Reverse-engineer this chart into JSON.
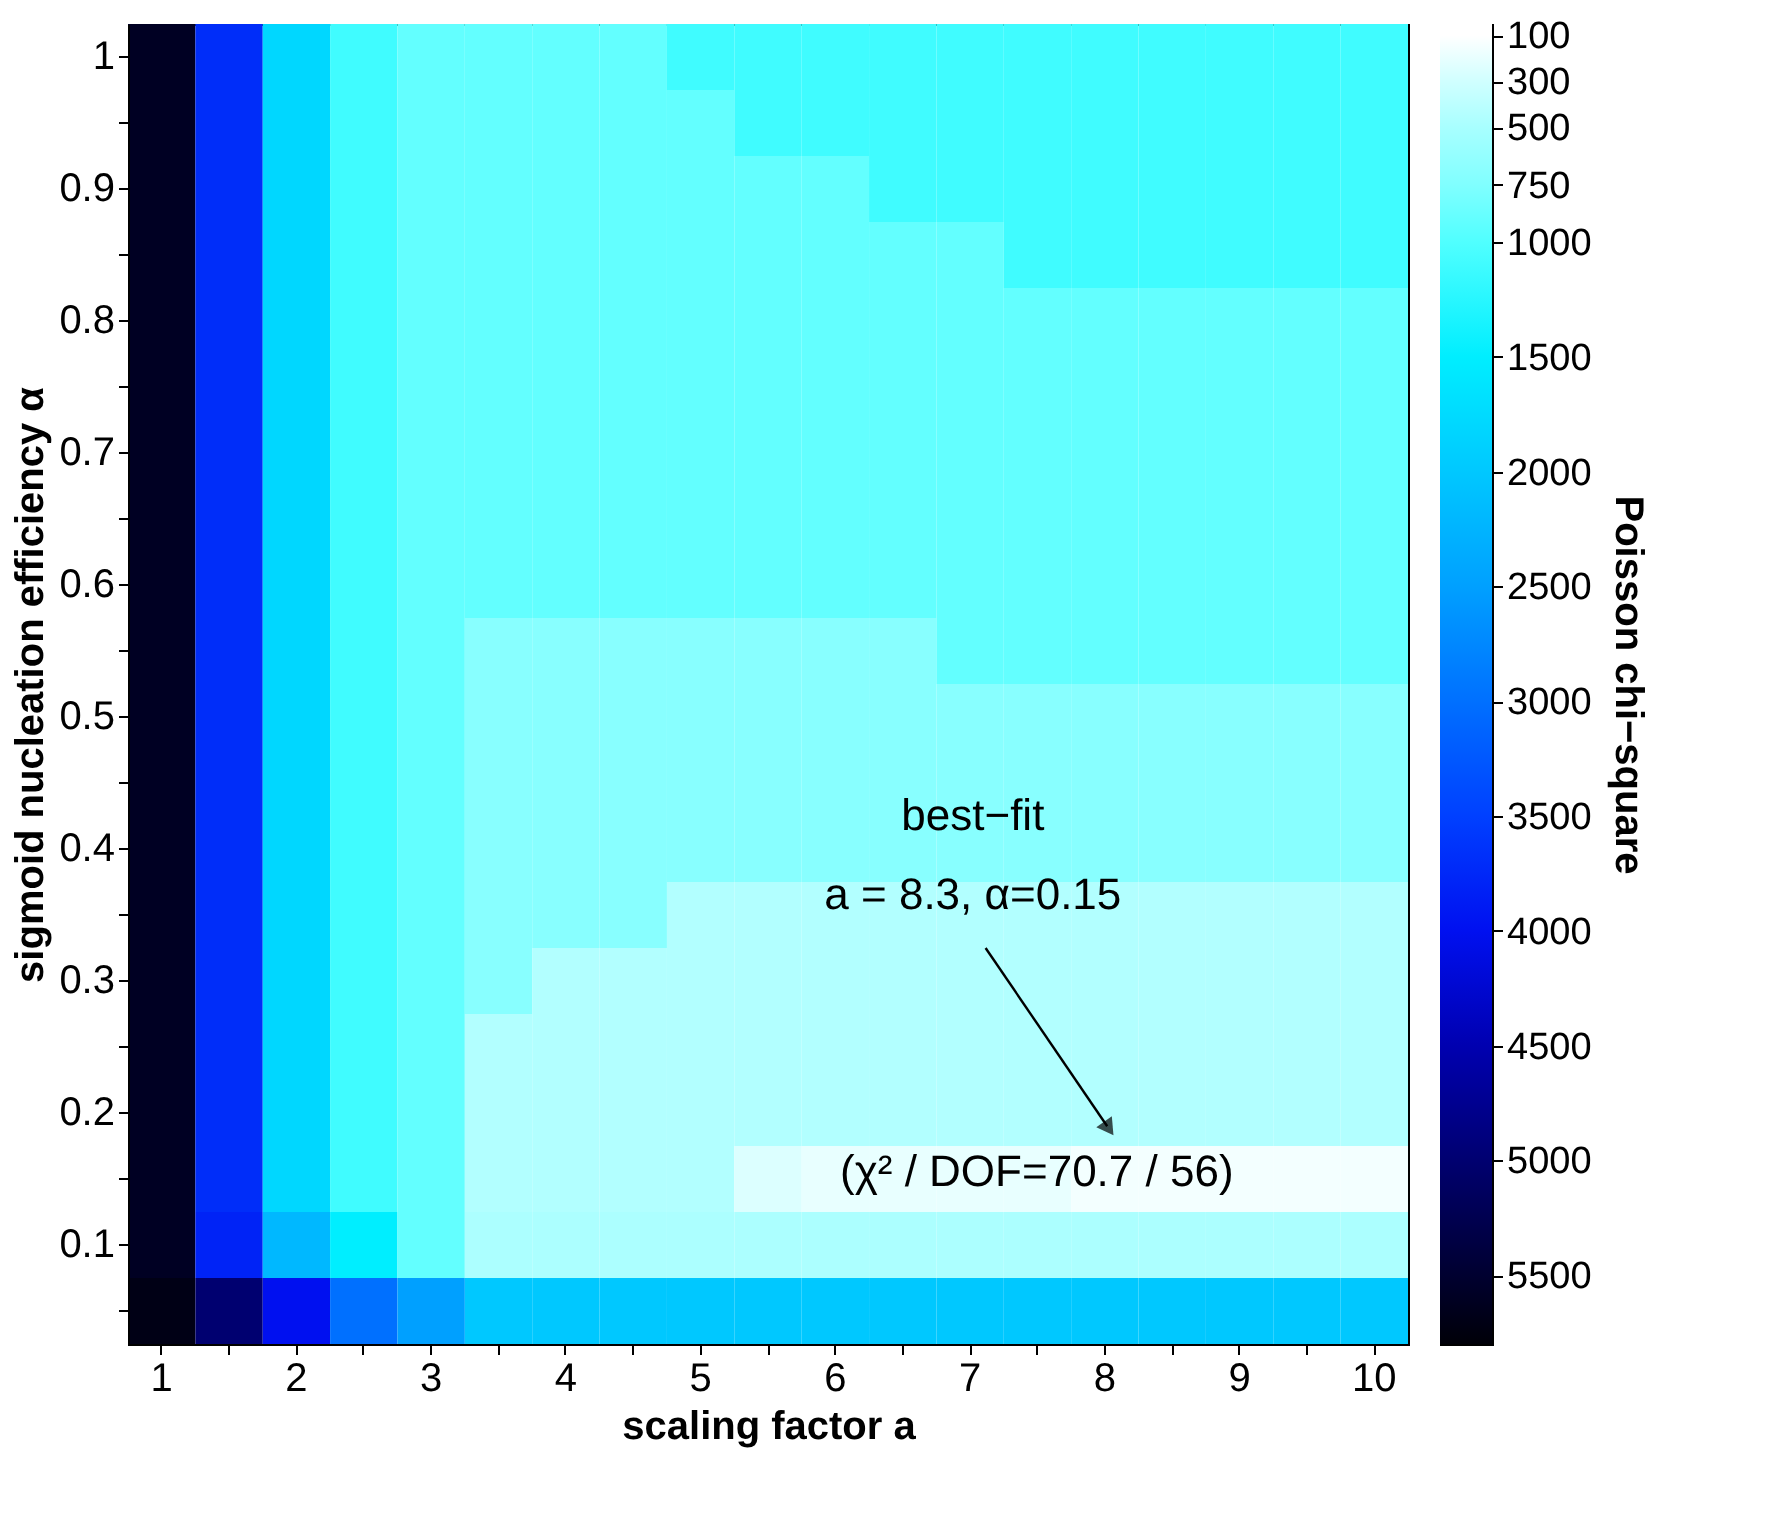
{
  "chart_data": {
    "type": "heatmap",
    "xlabel": "scaling factor  a",
    "ylabel": "sigmoid nucleation efficiency  α",
    "clabel": "Poisson chi−square",
    "categories": [
      "1",
      null,
      "2",
      null,
      "3",
      null,
      "4",
      null,
      "5",
      null,
      "6",
      null,
      "7",
      null,
      "8",
      null,
      "9",
      null,
      "10"
    ],
    "y_categories": [
      "1",
      null,
      "0.9",
      null,
      "0.8",
      null,
      "0.7",
      null,
      "0.6",
      null,
      "0.5",
      null,
      "0.4",
      null,
      "0.3",
      null,
      "0.2",
      null,
      "0.1",
      null
    ],
    "cells": [
      [
        5600,
        3700,
        1800,
        1100,
        900,
        900,
        900,
        900,
        1100,
        1100,
        1100,
        1100,
        1100,
        1100,
        1100,
        1100,
        1100,
        1100,
        1100
      ],
      [
        5600,
        3700,
        1800,
        1100,
        900,
        900,
        900,
        900,
        900,
        1100,
        1100,
        1100,
        1100,
        1100,
        1100,
        1100,
        1100,
        1100,
        1100
      ],
      [
        5600,
        3700,
        1800,
        1100,
        900,
        900,
        900,
        900,
        900,
        900,
        900,
        1100,
        1100,
        1100,
        1100,
        1100,
        1100,
        1100,
        1100
      ],
      [
        5600,
        3700,
        1800,
        1100,
        900,
        900,
        900,
        900,
        900,
        900,
        900,
        900,
        900,
        1100,
        1100,
        1100,
        1100,
        1100,
        1100
      ],
      [
        5600,
        3700,
        1800,
        1100,
        900,
        900,
        900,
        900,
        900,
        900,
        900,
        900,
        900,
        900,
        900,
        900,
        900,
        900,
        900
      ],
      [
        5600,
        3700,
        1800,
        1100,
        900,
        900,
        900,
        900,
        900,
        900,
        900,
        900,
        900,
        900,
        900,
        900,
        900,
        900,
        900
      ],
      [
        5600,
        3700,
        1800,
        1100,
        900,
        900,
        900,
        900,
        900,
        900,
        900,
        900,
        900,
        900,
        900,
        900,
        900,
        900,
        900
      ],
      [
        5600,
        3700,
        1800,
        1100,
        900,
        900,
        900,
        900,
        900,
        900,
        900,
        900,
        900,
        900,
        900,
        900,
        900,
        900,
        900
      ],
      [
        5600,
        3700,
        1800,
        1100,
        900,
        900,
        900,
        900,
        900,
        900,
        900,
        900,
        900,
        900,
        900,
        900,
        900,
        900,
        900
      ],
      [
        5600,
        3700,
        1800,
        1100,
        900,
        700,
        700,
        700,
        700,
        700,
        700,
        700,
        900,
        900,
        900,
        900,
        900,
        900,
        900
      ],
      [
        5600,
        3700,
        1800,
        1100,
        900,
        700,
        700,
        700,
        700,
        700,
        700,
        700,
        700,
        700,
        700,
        700,
        700,
        700,
        700
      ],
      [
        5600,
        3700,
        1800,
        1100,
        900,
        700,
        700,
        700,
        700,
        700,
        700,
        700,
        700,
        700,
        700,
        700,
        700,
        700,
        700
      ],
      [
        5600,
        3700,
        1800,
        1100,
        900,
        700,
        700,
        700,
        700,
        700,
        700,
        700,
        700,
        700,
        700,
        700,
        700,
        700,
        700
      ],
      [
        5600,
        3700,
        1800,
        1100,
        900,
        700,
        700,
        700,
        450,
        450,
        450,
        450,
        450,
        450,
        450,
        450,
        450,
        450,
        450
      ],
      [
        5600,
        3700,
        1800,
        1100,
        900,
        700,
        450,
        450,
        450,
        450,
        450,
        450,
        450,
        450,
        450,
        450,
        450,
        450,
        450
      ],
      [
        5600,
        3700,
        1800,
        1100,
        900,
        450,
        450,
        450,
        450,
        450,
        450,
        450,
        450,
        450,
        450,
        450,
        450,
        450,
        450
      ],
      [
        5600,
        3700,
        1800,
        1100,
        900,
        450,
        450,
        450,
        450,
        450,
        450,
        450,
        450,
        450,
        450,
        450,
        450,
        450,
        450
      ],
      [
        5600,
        3700,
        1800,
        1100,
        900,
        450,
        450,
        450,
        450,
        250,
        200,
        200,
        200,
        200,
        150,
        150,
        150,
        150,
        150
      ],
      [
        5600,
        3800,
        2200,
        1500,
        900,
        480,
        480,
        480,
        480,
        480,
        480,
        480,
        480,
        480,
        480,
        480,
        480,
        480,
        480
      ],
      [
        5700,
        5000,
        4000,
        3000,
        2500,
        2000,
        2000,
        2000,
        2000,
        2000,
        2000,
        2000,
        2000,
        2000,
        2000,
        2000,
        2000,
        2000,
        2000
      ]
    ],
    "clim": [
      50,
      5800
    ],
    "cticks": [
      100,
      300,
      500,
      750,
      1000,
      1500,
      2000,
      2500,
      3000,
      3500,
      4000,
      4500,
      5000,
      5500
    ],
    "annotations": [
      "best−fit",
      "a = 8.3, α=0.15",
      "(χ² / DOF=70.7 / 56)"
    ]
  }
}
